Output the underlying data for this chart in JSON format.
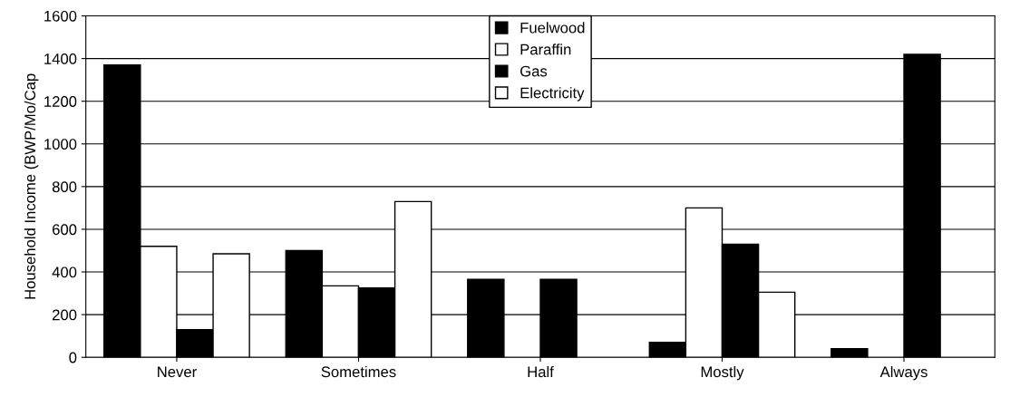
{
  "chart_data": {
    "type": "bar",
    "ylabel": "Household Income (BWP/Mo/Cap",
    "categories": [
      "Never",
      "Sometimes",
      "Half",
      "Mostly",
      "Always"
    ],
    "series": [
      {
        "name": "Fuelwood",
        "color": "#000000",
        "values": [
          1370,
          500,
          365,
          70,
          40
        ]
      },
      {
        "name": "Paraffin",
        "color": "#ffffff",
        "values": [
          520,
          335,
          null,
          700,
          null
        ]
      },
      {
        "name": "Gas",
        "color": "#000000",
        "values": [
          130,
          325,
          365,
          530,
          1420
        ]
      },
      {
        "name": "Electricity",
        "color": "#ffffff",
        "values": [
          485,
          730,
          null,
          305,
          null
        ]
      }
    ],
    "ylim": [
      0,
      1600
    ],
    "yticks": [
      0,
      200,
      400,
      600,
      800,
      1000,
      1200,
      1400,
      1600
    ],
    "grid": "y",
    "legend": "top"
  }
}
